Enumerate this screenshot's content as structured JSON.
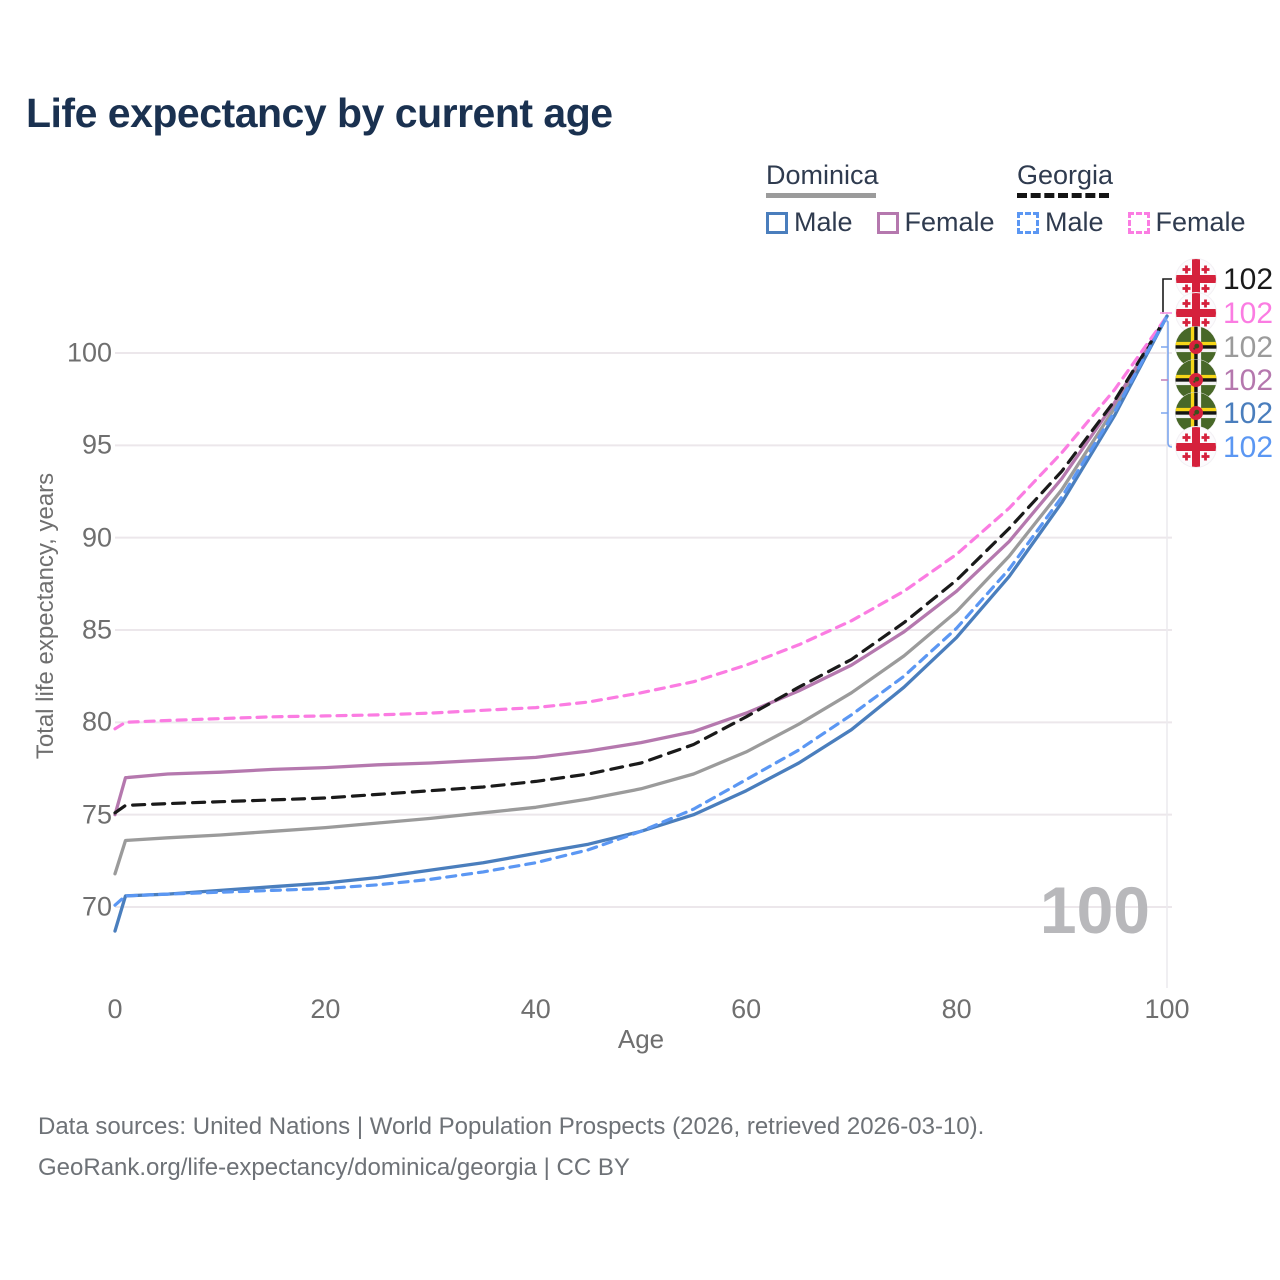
{
  "title": "Life expectancy by current age",
  "watermark": "100",
  "legend": {
    "groups": [
      {
        "label": "Dominica",
        "style": "solid"
      },
      {
        "label": "Georgia",
        "style": "dashed"
      }
    ],
    "items": [
      {
        "group": "Dominica",
        "label": "Male",
        "color": "#4a7ebd",
        "dashed": false
      },
      {
        "group": "Dominica",
        "label": "Female",
        "color": "#b578ae",
        "dashed": false
      },
      {
        "group": "Georgia",
        "label": "Male",
        "color": "#5b97f3",
        "dashed": true
      },
      {
        "group": "Georgia",
        "label": "Female",
        "color": "#fb7ce2",
        "dashed": true
      }
    ]
  },
  "footer": {
    "line1": "Data sources: United Nations | World Population Prospects (2026, retrieved 2026-03-10).",
    "line2": "GeoRank.org/life-expectancy/dominica/georgia | CC BY"
  },
  "chart_data": {
    "type": "line",
    "title": "Life expectancy by current age",
    "xlabel": "Age",
    "ylabel": "Total life expectancy, years",
    "xlim": [
      0,
      100
    ],
    "ylim": [
      68,
      103
    ],
    "x_ticks": [
      0,
      20,
      40,
      60,
      80,
      100
    ],
    "y_ticks": [
      70,
      75,
      80,
      85,
      90,
      95,
      100
    ],
    "grid": "horizontal",
    "legend_position": "top-right",
    "age_indicator": "100",
    "x": [
      0,
      1,
      5,
      10,
      15,
      20,
      25,
      30,
      35,
      40,
      45,
      50,
      55,
      60,
      65,
      70,
      75,
      80,
      85,
      90,
      95,
      100
    ],
    "series": [
      {
        "id": "dominica-all",
        "country": "Dominica",
        "sex": "all",
        "color": "#9b9b9b",
        "dash": null,
        "values": [
          71.8,
          73.6,
          73.75,
          73.9,
          74.1,
          74.3,
          74.55,
          74.8,
          75.1,
          75.4,
          75.85,
          76.4,
          77.2,
          78.4,
          79.9,
          81.6,
          83.6,
          86.0,
          89.0,
          92.6,
          97.0,
          102
        ]
      },
      {
        "id": "dominica-female",
        "country": "Dominica",
        "sex": "female",
        "color": "#b578ae",
        "dash": null,
        "values": [
          75.0,
          77.0,
          77.2,
          77.3,
          77.45,
          77.55,
          77.7,
          77.8,
          77.95,
          78.1,
          78.45,
          78.9,
          79.5,
          80.5,
          81.7,
          83.1,
          84.9,
          87.1,
          89.8,
          93.2,
          97.3,
          102
        ]
      },
      {
        "id": "dominica-male",
        "country": "Dominica",
        "sex": "male",
        "color": "#4a7ebd",
        "dash": null,
        "values": [
          68.7,
          70.6,
          70.7,
          70.9,
          71.1,
          71.3,
          71.6,
          72.0,
          72.4,
          72.9,
          73.4,
          74.1,
          75.0,
          76.3,
          77.8,
          79.6,
          81.9,
          84.6,
          87.9,
          91.9,
          96.6,
          102
        ]
      },
      {
        "id": "georgia-all",
        "country": "Georgia",
        "sex": "all",
        "color": "#1a1a1a",
        "dash": "12 8",
        "values": [
          75.1,
          75.5,
          75.6,
          75.7,
          75.8,
          75.9,
          76.1,
          76.3,
          76.5,
          76.8,
          77.2,
          77.8,
          78.8,
          80.3,
          81.9,
          83.4,
          85.4,
          87.7,
          90.5,
          93.6,
          97.4,
          102
        ]
      },
      {
        "id": "georgia-female",
        "country": "Georgia",
        "sex": "female",
        "color": "#fb7ce2",
        "dash": "9 7",
        "values": [
          79.65,
          80.0,
          80.1,
          80.2,
          80.3,
          80.35,
          80.4,
          80.5,
          80.65,
          80.8,
          81.1,
          81.6,
          82.2,
          83.1,
          84.2,
          85.5,
          87.1,
          89.1,
          91.6,
          94.6,
          98.0,
          102
        ]
      },
      {
        "id": "georgia-male",
        "country": "Georgia",
        "sex": "male",
        "color": "#5b97f3",
        "dash": "9 7",
        "values": [
          70.1,
          70.6,
          70.7,
          70.8,
          70.9,
          71.0,
          71.2,
          71.5,
          71.9,
          72.4,
          73.1,
          74.1,
          75.3,
          76.9,
          78.5,
          80.4,
          82.5,
          85.1,
          88.3,
          92.2,
          96.8,
          102
        ]
      }
    ],
    "end_labels": [
      {
        "series": "georgia-all",
        "flag": "georgia",
        "text": "102",
        "color": "#1a1a1a"
      },
      {
        "series": "georgia-female",
        "flag": "georgia",
        "text": "102",
        "color": "#fb7ce2"
      },
      {
        "series": "dominica-all",
        "flag": "dominica",
        "text": "102",
        "color": "#9b9b9b"
      },
      {
        "series": "dominica-female",
        "flag": "dominica",
        "text": "102",
        "color": "#b578ae"
      },
      {
        "series": "dominica-male",
        "flag": "dominica",
        "text": "102",
        "color": "#4a7ebd"
      },
      {
        "series": "georgia-male",
        "flag": "georgia",
        "text": "102",
        "color": "#5b97f3"
      }
    ]
  }
}
